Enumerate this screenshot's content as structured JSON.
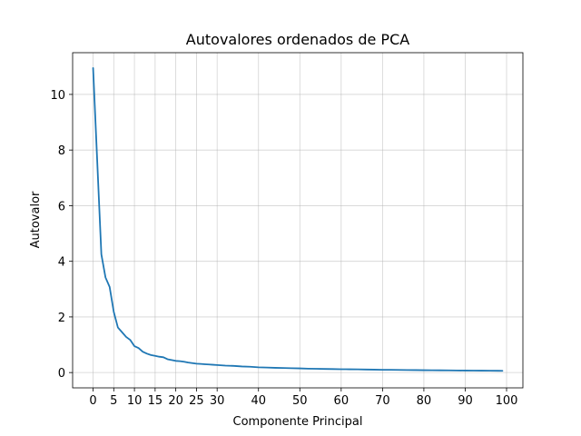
{
  "chart_data": {
    "type": "line",
    "title": "Autovalores ordenados de PCA",
    "xlabel": "Componente Principal",
    "ylabel": "Autovalor",
    "xlim": [
      -4.95,
      103.95
    ],
    "ylim": [
      -0.55,
      11.5
    ],
    "xticks": [
      0,
      5,
      10,
      15,
      20,
      25,
      30,
      40,
      50,
      60,
      70,
      80,
      90,
      100
    ],
    "yticks": [
      0,
      2,
      4,
      6,
      8,
      10
    ],
    "grid": true,
    "line_color": "#1f77b4",
    "x": [
      0,
      1,
      2,
      3,
      4,
      5,
      6,
      7,
      8,
      9,
      10,
      11,
      12,
      13,
      14,
      15,
      16,
      17,
      18,
      19,
      20,
      21,
      22,
      23,
      24,
      25,
      26,
      27,
      28,
      29,
      30,
      32,
      34,
      36,
      38,
      40,
      42,
      44,
      46,
      48,
      50,
      52,
      54,
      56,
      58,
      60,
      62,
      64,
      66,
      68,
      70,
      72,
      74,
      76,
      78,
      80,
      82,
      84,
      86,
      88,
      90,
      92,
      94,
      96,
      98,
      99
    ],
    "y": [
      10.95,
      7.6,
      4.25,
      3.42,
      3.08,
      2.18,
      1.62,
      1.45,
      1.28,
      1.17,
      0.95,
      0.88,
      0.75,
      0.68,
      0.63,
      0.6,
      0.57,
      0.55,
      0.48,
      0.45,
      0.42,
      0.41,
      0.39,
      0.36,
      0.34,
      0.32,
      0.31,
      0.3,
      0.29,
      0.28,
      0.27,
      0.25,
      0.24,
      0.22,
      0.21,
      0.19,
      0.18,
      0.17,
      0.165,
      0.155,
      0.15,
      0.14,
      0.135,
      0.13,
      0.125,
      0.12,
      0.118,
      0.115,
      0.11,
      0.105,
      0.1,
      0.098,
      0.095,
      0.09,
      0.088,
      0.085,
      0.083,
      0.08,
      0.078,
      0.075,
      0.072,
      0.07,
      0.068,
      0.066,
      0.064,
      0.062
    ]
  }
}
